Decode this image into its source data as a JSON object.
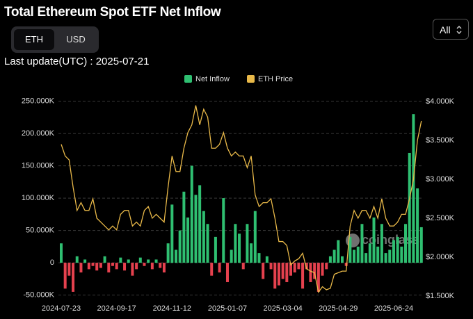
{
  "header": {
    "title": "Total Ethereum Spot ETF Net Inflow",
    "toggle": [
      "ETH",
      "USD"
    ],
    "range": "All",
    "last_update": "Last update(UTC) : 2025-07-21",
    "watermark": "coinglass"
  },
  "chart_data": {
    "type": "bar_line",
    "categories": [
      "2024-07-23",
      null,
      null,
      null,
      null,
      null,
      null,
      null,
      null,
      null,
      null,
      null,
      null,
      null,
      "2024-09-17",
      null,
      null,
      null,
      null,
      null,
      null,
      null,
      null,
      null,
      null,
      null,
      null,
      null,
      "2024-11-12",
      null,
      null,
      null,
      null,
      null,
      null,
      null,
      null,
      null,
      null,
      null,
      null,
      null,
      "2025-01-07",
      null,
      null,
      null,
      null,
      null,
      null,
      null,
      null,
      null,
      null,
      null,
      null,
      null,
      "2025-03-04",
      null,
      null,
      null,
      null,
      null,
      null,
      null,
      null,
      null,
      null,
      null,
      null,
      null,
      "2025-04-29",
      null,
      null,
      null,
      null,
      null,
      null,
      null,
      null,
      null,
      null,
      null,
      null,
      null,
      "2025-06-24",
      null,
      null,
      null,
      null,
      null,
      null,
      null
    ],
    "series": [
      {
        "name": "Net Inflow",
        "color": "#2fbf71",
        "negative_color": "#e5414e",
        "axis": "y",
        "values": [
          30,
          -40,
          -20,
          -45,
          10,
          -15,
          5,
          -10,
          -5,
          -12,
          -8,
          10,
          -15,
          -5,
          -10,
          8,
          -12,
          5,
          -20,
          -10,
          8,
          -5,
          5,
          -10,
          5,
          -8,
          -15,
          30,
          90,
          20,
          50,
          110,
          70,
          150,
          105,
          120,
          80,
          60,
          -20,
          40,
          -15,
          100,
          -30,
          20,
          60,
          45,
          -10,
          60,
          30,
          80,
          15,
          -25,
          10,
          -10,
          -40,
          -35,
          -25,
          -30,
          -20,
          -15,
          -10,
          -40,
          -10,
          -30,
          -25,
          -45,
          -20,
          -10,
          10,
          20,
          35,
          10,
          -5,
          40,
          20,
          25,
          60,
          15,
          30,
          70,
          25,
          60,
          15,
          20,
          35,
          40,
          25,
          60,
          170,
          230,
          115,
          55
        ]
      },
      {
        "name": "ETH Price",
        "color": "#e9b949",
        "axis": "y2",
        "values": [
          3.45,
          3.3,
          3.25,
          2.9,
          2.6,
          2.7,
          2.6,
          2.6,
          2.75,
          2.5,
          2.45,
          2.4,
          2.35,
          2.4,
          2.35,
          2.55,
          2.6,
          2.6,
          2.4,
          2.45,
          2.4,
          2.6,
          2.65,
          2.5,
          2.55,
          2.5,
          2.45,
          2.9,
          3.3,
          3.1,
          3.1,
          3.4,
          3.6,
          3.7,
          3.95,
          3.7,
          3.9,
          3.8,
          3.4,
          3.4,
          3.45,
          3.6,
          3.4,
          3.3,
          3.35,
          3.3,
          3.3,
          3.15,
          3.3,
          2.8,
          2.65,
          2.7,
          2.7,
          2.75,
          2.5,
          2.2,
          2.2,
          2.15,
          1.9,
          1.95,
          1.98,
          2.05,
          1.85,
          1.82,
          1.8,
          1.55,
          1.62,
          1.58,
          1.6,
          1.78,
          1.8,
          1.82,
          1.82,
          2.4,
          2.6,
          2.5,
          2.6,
          2.6,
          2.5,
          2.65,
          2.5,
          2.75,
          2.5,
          2.4,
          2.4,
          2.45,
          2.55,
          2.55,
          2.75,
          3.0,
          3.5,
          3.75
        ]
      }
    ],
    "ylim": [
      -58,
      256
    ],
    "yticks": [
      {
        "value": -50,
        "label": "-50.000K"
      },
      0,
      {
        "value": 50,
        "label": "50.000K"
      },
      {
        "value": 100,
        "label": "100.000K"
      },
      {
        "value": 150,
        "label": "150.000K"
      },
      {
        "value": 200,
        "label": "200.000K"
      },
      {
        "value": 250,
        "label": "250.000K"
      }
    ],
    "y2lim": [
      1.446,
      4.054
    ],
    "y2ticks": [
      {
        "value": 1.5,
        "label": "$1.500K"
      },
      {
        "value": 2,
        "label": "$2.000K"
      },
      {
        "value": 2.5,
        "label": "$2.500K"
      },
      {
        "value": 3,
        "label": "$3.000K"
      },
      {
        "value": 3.5,
        "label": "$3.500K"
      },
      {
        "value": 4,
        "label": "$4.000K"
      }
    ],
    "grid": true,
    "legend": "top"
  }
}
